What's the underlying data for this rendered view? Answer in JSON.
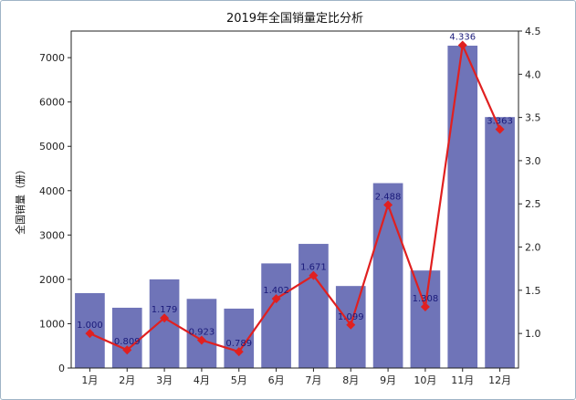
{
  "chart_data": {
    "type": "bar",
    "title": "2019年全国销量定比分析",
    "ylabel": "全国销量（册）",
    "ylabel_right": "",
    "categories": [
      "1月",
      "2月",
      "3月",
      "4月",
      "5月",
      "6月",
      "7月",
      "8月",
      "9月",
      "10月",
      "11月",
      "12月"
    ],
    "series": [
      {
        "type": "bar",
        "axis": "left",
        "color": "#6f74b8",
        "values": [
          1690,
          1360,
          2000,
          1560,
          1340,
          2360,
          2800,
          1850,
          4170,
          2200,
          7270,
          5660
        ]
      },
      {
        "type": "line",
        "axis": "right",
        "color": "#e02020",
        "marker": "diamond",
        "values": [
          1.0,
          0.809,
          1.179,
          0.923,
          0.789,
          1.402,
          1.671,
          1.099,
          2.488,
          1.308,
          4.336,
          3.363
        ],
        "labels": [
          "1.000",
          "0.809",
          "1.179",
          "0.923",
          "0.789",
          "1.402",
          "1.671",
          "1.099",
          "2.488",
          "1.308",
          "4.336",
          "3.363"
        ]
      }
    ],
    "ylim": [
      0,
      7600
    ],
    "yticks": [
      0,
      1000,
      2000,
      3000,
      4000,
      5000,
      6000,
      7000
    ],
    "ylim_right": [
      0.6,
      4.5
    ],
    "yticks_right": [
      "1.0",
      "1.5",
      "2.0",
      "2.5",
      "3.0",
      "3.5",
      "4.0",
      "4.5"
    ],
    "grid": false
  }
}
